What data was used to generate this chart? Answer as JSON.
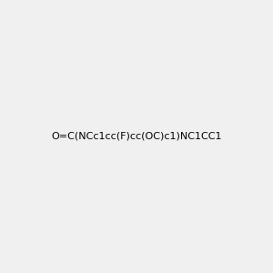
{
  "smiles": "O=C(NCc1cc(F)cc(OC)c1)NC1CC1",
  "image_size": 300,
  "background_color": "#f0f0f0",
  "title": ""
}
